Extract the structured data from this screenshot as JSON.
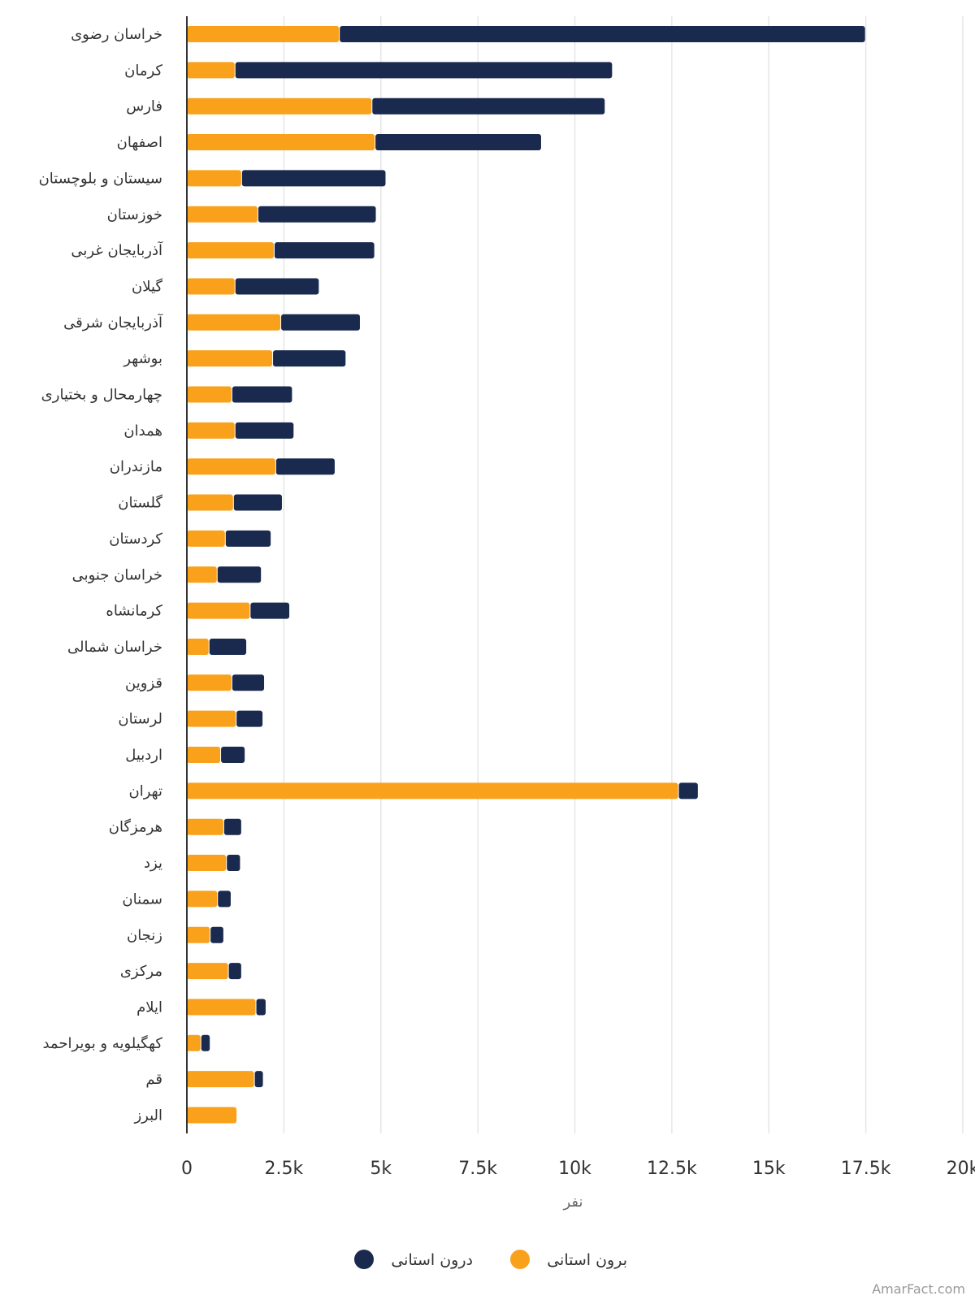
{
  "chart_data": {
    "type": "bar",
    "orientation": "horizontal",
    "stacked": true,
    "xlabel": "نفر",
    "xlim": [
      0,
      20000
    ],
    "ticks": [
      {
        "value": 0,
        "label": "0"
      },
      {
        "value": 2500,
        "label": "2.5k"
      },
      {
        "value": 5000,
        "label": "5k"
      },
      {
        "value": 7500,
        "label": "7.5k"
      },
      {
        "value": 10000,
        "label": "10k"
      },
      {
        "value": 12500,
        "label": "12.5k"
      },
      {
        "value": 15000,
        "label": "15k"
      },
      {
        "value": 17500,
        "label": "17.5k"
      },
      {
        "value": 20000,
        "label": "20k"
      }
    ],
    "grid": true,
    "legend_position": "bottom",
    "categories": [
      "خراسان رضوی",
      "کرمان",
      "فارس",
      "اصفهان",
      "سیستان و بلوچستان",
      "خوزستان",
      "آذربایجان غربی",
      "گیلان",
      "آذربایجان شرقی",
      "بوشهر",
      "چهارمحال و بختیاری",
      "همدان",
      "مازندران",
      "گلستان",
      "کردستان",
      "خراسان جنوبی",
      "کرمانشاه",
      "خراسان شمالی",
      "قزوین",
      "لرستان",
      "اردبیل",
      "تهران",
      "هرمزگان",
      "یزد",
      "سمنان",
      "زنجان",
      "مرکزی",
      "ایلام",
      "کهگیلویه و بویراحمد",
      "قم",
      "البرز"
    ],
    "series": [
      {
        "name": "برون استانی",
        "color": "#f9a11b",
        "values": [
          3920,
          1230,
          4760,
          4840,
          1400,
          1820,
          2240,
          1230,
          2410,
          2200,
          1150,
          1230,
          2280,
          1190,
          980,
          770,
          1620,
          560,
          1150,
          1260,
          860,
          12660,
          940,
          1010,
          780,
          590,
          1060,
          1770,
          350,
          1730,
          1280
        ]
      },
      {
        "name": "درون استانی",
        "color": "#1a2a4e",
        "values": [
          13560,
          9730,
          6010,
          4290,
          3720,
          3050,
          2590,
          2170,
          2050,
          1890,
          1560,
          1520,
          1530,
          1260,
          1180,
          1140,
          1020,
          970,
          840,
          690,
          630,
          510,
          460,
          360,
          350,
          350,
          340,
          260,
          240,
          230,
          0
        ]
      }
    ]
  },
  "credit": "AmarFact.com"
}
